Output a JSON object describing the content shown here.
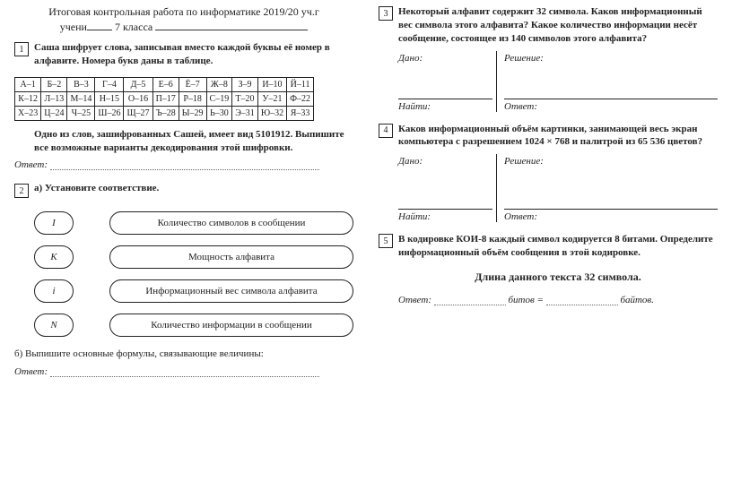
{
  "header": {
    "title": "Итоговая контрольная работа по информатике  2019/20 уч.г",
    "line2_pre": "учени",
    "line2_mid": " 7 класса "
  },
  "task1": {
    "num": "1",
    "text": "Саша шифрует слова, записывая вместо каждой буквы её номер в алфавите. Номера букв даны в таблице.",
    "table": [
      [
        "А–1",
        "Б–2",
        "В–3",
        "Г–4",
        "Д–5",
        "Е–6",
        "Ё–7",
        "Ж–8",
        "З–9",
        "И–10",
        "Й–11"
      ],
      [
        "К–12",
        "Л–13",
        "М–14",
        "Н–15",
        "О–16",
        "П–17",
        "Р–18",
        "С–19",
        "Т–20",
        "У–21",
        "Ф–22"
      ],
      [
        "Х–23",
        "Ц–24",
        "Ч–25",
        "Ш–26",
        "Щ–27",
        "Ъ–28",
        "Ы–29",
        "Ь–30",
        "Э–31",
        "Ю–32",
        "Я–33"
      ]
    ],
    "para2": "Одно из слов, зашифрованных Сашей, имеет вид 5101912. Выпишите все возможные варианты декодирования этой шифровки.",
    "answer_label": "Ответ:"
  },
  "task2": {
    "num": "2",
    "a_title": "а) Установите соответствие.",
    "pairs": [
      {
        "sym": "I",
        "text": "Количество символов в сообщении"
      },
      {
        "sym": "K",
        "text": "Мощность алфавита"
      },
      {
        "sym": "i",
        "text": "Информационный вес символа алфавита"
      },
      {
        "sym": "N",
        "text": "Количество информации в сообщении"
      }
    ],
    "b_text": "б) Выпишите основные формулы, связывающие величины:",
    "answer_label": "Ответ:"
  },
  "task3": {
    "num": "3",
    "text": "Некоторый алфавит содержит 32 символа. Каков информационный вес символа этого алфавита? Какое количество информации несёт сообщение, состоящее из 140 символов этого алфавита?",
    "dano": "Дано:",
    "reshenie": "Решение:",
    "naiti": "Найти:",
    "otvet": "Ответ:"
  },
  "task4": {
    "num": "4",
    "text": "Каков информационный объём картинки, занимающей весь экран компьютера с разрешением 1024 × 768 и палитрой из 65 536 цветов?",
    "dano": "Дано:",
    "reshenie": "Решение:",
    "naiti": "Найти:",
    "otvet": "Ответ:"
  },
  "task5": {
    "num": "5",
    "text": "В кодировке КОИ-8 каждый символ кодируется 8 битами. Определите информационный объём сообщения в этой кодировке.",
    "bold_line": "Длина данного текста 32 символа.",
    "answer_label": "Ответ:",
    "unit1": " битов = ",
    "unit2": " байтов."
  }
}
